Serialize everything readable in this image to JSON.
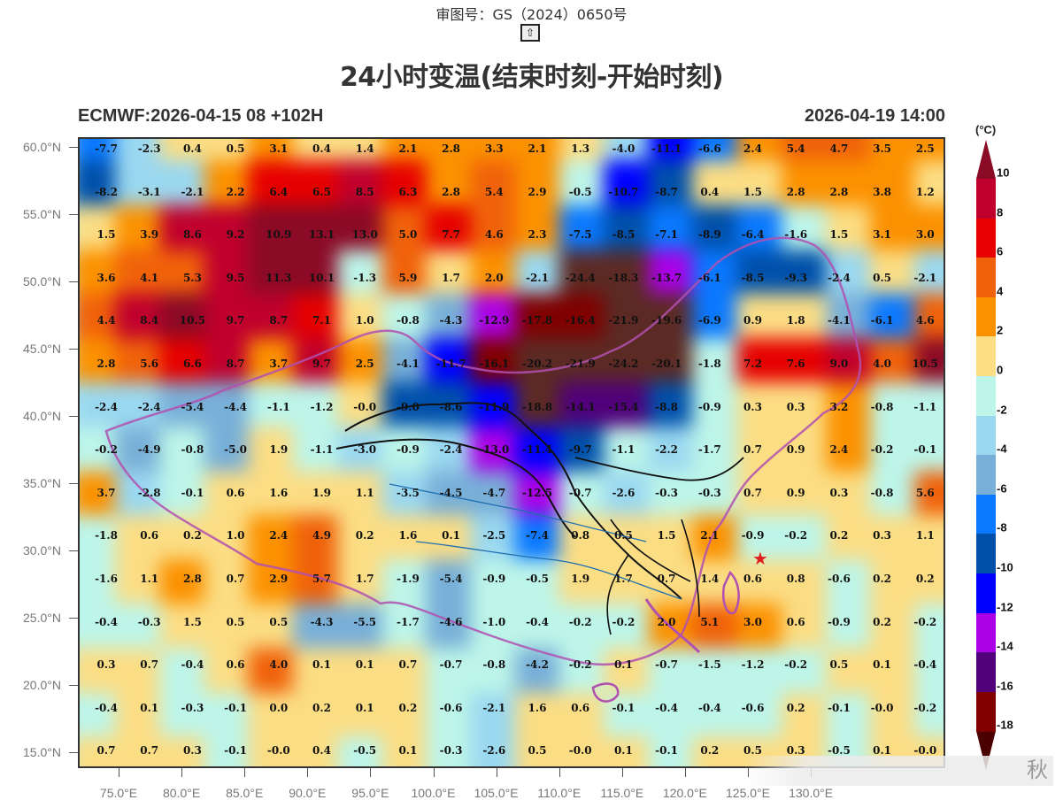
{
  "header": {
    "approval_number": "审图号：GS（2024）0650号",
    "up_button_icon": "⇧",
    "title": "24小时变温(结束时刻-开始时刻)",
    "model_run": "ECMWF:2026-04-15 08 +102H",
    "valid_time": "2026-04-19 14:00"
  },
  "axes": {
    "y_labels": [
      "60.0°N",
      "55.0°N",
      "50.0°N",
      "45.0°N",
      "40.0°N",
      "35.0°N",
      "30.0°N",
      "25.0°N",
      "20.0°N",
      "15.0°N"
    ],
    "x_labels": [
      "75.0°E",
      "80.0°E",
      "85.0°E",
      "90.0°E",
      "95.0°E",
      "100.0°E",
      "105.0°E",
      "110.0°E",
      "115.0°E",
      "120.0°E",
      "125.0°E",
      "130.0°E"
    ]
  },
  "colorbar": {
    "unit": "(°C)",
    "labels": [
      "10",
      "8",
      "6",
      "4",
      "2",
      "0",
      "-2",
      "-4",
      "-6",
      "-8",
      "-10",
      "-12",
      "-14",
      "-16",
      "-18"
    ],
    "colors": {
      "over": "#8b0a26",
      "8_10": "#c0002d",
      "6_8": "#e60000",
      "4_6": "#f0620a",
      "2_4": "#fb9100",
      "0_2": "#fbdd84",
      "m2_0": "#bdf5e9",
      "m4_m2": "#9ad8f0",
      "m6_m4": "#78afd8",
      "m8_m6": "#0a78ff",
      "m10_m8": "#0050aa",
      "m12_m10": "#0000ff",
      "m14_m12": "#aa00e6",
      "m16_m14": "#50007a",
      "m18_m16": "#800000",
      "under": "#4a0000"
    }
  },
  "chart_data": {
    "type": "heatmap",
    "title": "24小时变温(结束时刻-开始时刻)",
    "subtitle_left": "ECMWF:2026-04-15 08 +102H",
    "subtitle_right": "2026-04-19 14:00",
    "units": "°C",
    "xlabel": "Longitude",
    "ylabel": "Latitude",
    "xlim": [
      72,
      135
    ],
    "ylim": [
      14,
      60.5
    ],
    "legend_position": "right colorbar",
    "colorbar_levels": [
      -18,
      -16,
      -14,
      -12,
      -10,
      -8,
      -6,
      -4,
      -2,
      0,
      2,
      4,
      6,
      8,
      10
    ],
    "rows": [
      [
        "-7.7",
        "-2.3",
        "0.4",
        "0.5",
        "3.1",
        "0.4",
        "1.4",
        "2.1",
        "2.8",
        "3.3",
        "2.1",
        "1.3",
        "-4.0",
        "-11.1",
        "-6.6",
        "2.4",
        "5.4",
        "4.7",
        "3.5",
        "2.5"
      ],
      [
        "-8.2",
        "-3.1",
        "-2.1",
        "2.2",
        "6.4",
        "6.5",
        "8.5",
        "6.3",
        "2.8",
        "5.4",
        "2.9",
        "-0.5",
        "-10.7",
        "-8.7",
        "0.4",
        "1.5",
        "2.8",
        "2.8",
        "3.8",
        "1.2"
      ],
      [
        "1.5",
        "3.9",
        "8.6",
        "9.2",
        "10.9",
        "13.1",
        "13.0",
        "5.0",
        "7.7",
        "4.6",
        "2.3",
        "-7.5",
        "-8.5",
        "-7.1",
        "-8.9",
        "-6.4",
        "-1.6",
        "1.5",
        "3.1",
        "3.0"
      ],
      [
        "3.6",
        "4.1",
        "5.3",
        "9.5",
        "11.3",
        "10.1",
        "-1.3",
        "5.9",
        "1.7",
        "2.0",
        "-2.1",
        "-24.4",
        "-18.3",
        "-13.7",
        "-6.1",
        "-8.5",
        "-9.3",
        "-2.4",
        "0.5",
        "-2.1"
      ],
      [
        "4.4",
        "8.4",
        "10.5",
        "9.7",
        "8.7",
        "7.1",
        "1.0",
        "-0.8",
        "-4.3",
        "-12.9",
        "-17.8",
        "-16.4",
        "-21.9",
        "-19.6",
        "-6.9",
        "0.9",
        "1.8",
        "-4.1",
        "-6.1",
        "4.6"
      ],
      [
        "2.8",
        "5.6",
        "6.6",
        "8.7",
        "3.7",
        "9.7",
        "2.5",
        "-4.1",
        "-11.7",
        "-16.1",
        "-20.2",
        "-21.9",
        "-24.2",
        "-20.1",
        "-1.8",
        "7.2",
        "7.6",
        "9.0",
        "4.0",
        "10.5"
      ],
      [
        "-2.4",
        "-2.4",
        "-5.4",
        "-4.4",
        "-1.1",
        "-1.2",
        "-0.0",
        "-9.0",
        "-8.6",
        "-11.9",
        "-18.8",
        "-14.1",
        "-15.4",
        "-8.8",
        "-0.9",
        "0.3",
        "0.3",
        "3.2",
        "-0.8",
        "-1.1"
      ],
      [
        "-0.2",
        "-4.9",
        "-0.8",
        "-5.0",
        "1.9",
        "-1.1",
        "-3.0",
        "-0.9",
        "-2.4",
        "-13.0",
        "-11.4",
        "-9.7",
        "-1.1",
        "-2.2",
        "-1.7",
        "0.7",
        "0.9",
        "2.4",
        "-0.2",
        "-0.1"
      ],
      [
        "3.7",
        "-2.8",
        "-0.1",
        "0.6",
        "1.6",
        "1.9",
        "1.1",
        "-3.5",
        "-4.5",
        "-4.7",
        "-12.5",
        "-0.7",
        "-2.6",
        "-0.3",
        "-0.3",
        "0.7",
        "0.9",
        "0.3",
        "-0.8",
        "5.6"
      ],
      [
        "-1.8",
        "0.6",
        "0.2",
        "1.0",
        "2.4",
        "4.9",
        "0.2",
        "1.6",
        "0.1",
        "-2.5",
        "-7.4",
        "0.8",
        "0.5",
        "1.5",
        "2.1",
        "-0.9",
        "-0.2",
        "0.2",
        "0.3",
        "1.1"
      ],
      [
        "-1.6",
        "1.1",
        "2.8",
        "0.7",
        "2.9",
        "5.7",
        "1.7",
        "-1.9",
        "-5.4",
        "-0.9",
        "-0.5",
        "1.9",
        "1.7",
        "0.7",
        "1.4",
        "0.6",
        "0.8",
        "-0.6",
        "0.2",
        "0.2"
      ],
      [
        "-0.4",
        "-0.3",
        "1.5",
        "0.5",
        "0.5",
        "-4.3",
        "-5.5",
        "-1.7",
        "-4.6",
        "-1.0",
        "-0.4",
        "-0.2",
        "-0.2",
        "2.0",
        "5.1",
        "3.0",
        "0.6",
        "-0.9",
        "0.2",
        "-0.2"
      ],
      [
        "0.3",
        "0.7",
        "-0.4",
        "0.6",
        "4.0",
        "0.1",
        "0.1",
        "0.7",
        "-0.7",
        "-0.8",
        "-4.2",
        "-0.2",
        "0.1",
        "-0.7",
        "-1.5",
        "-1.2",
        "-0.2",
        "0.5",
        "0.1",
        "-0.4"
      ],
      [
        "-0.4",
        "0.1",
        "-0.3",
        "-0.1",
        "0.0",
        "0.2",
        "0.1",
        "0.2",
        "-0.6",
        "-2.1",
        "1.6",
        "0.6",
        "-0.1",
        "-0.4",
        "-0.4",
        "-0.6",
        "0.2",
        "-0.1",
        "-0.0",
        "-0.2"
      ],
      [
        "0.7",
        "0.7",
        "0.3",
        "-0.1",
        "-0.0",
        "0.4",
        "-0.5",
        "0.1",
        "-0.3",
        "-2.6",
        "0.5",
        "-0.0",
        "0.1",
        "-0.1",
        "0.2",
        "0.5",
        "0.3",
        "-0.5",
        "0.1",
        "-0.0"
      ]
    ],
    "annotations": [
      "red star marker near Beijing (116.4°E, 39.9°N)"
    ]
  },
  "watermark": {
    "text": "秋"
  }
}
